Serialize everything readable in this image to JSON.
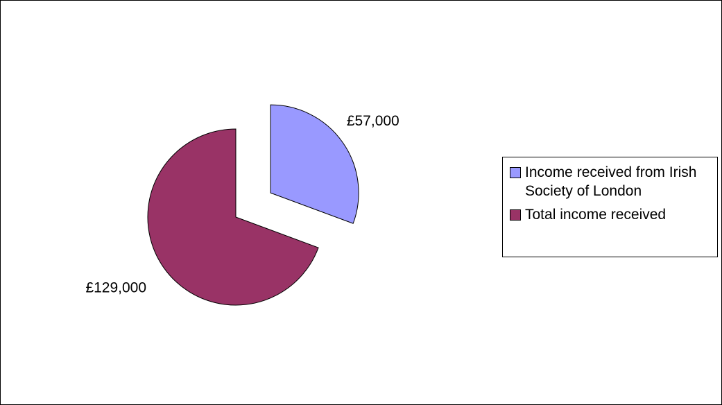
{
  "chart_data": {
    "type": "pie",
    "categories": [
      "Income received from Irish Society of London",
      "Total income received"
    ],
    "values": [
      57000,
      129000
    ],
    "value_labels": [
      "£57,000",
      "£129,000"
    ],
    "colors": [
      "#9999ff",
      "#993366"
    ],
    "legend": "right"
  }
}
